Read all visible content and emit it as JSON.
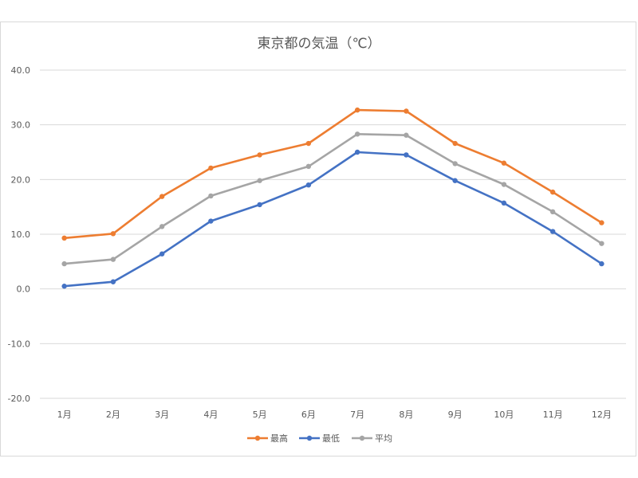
{
  "chart_data": {
    "type": "line",
    "title": "東京都の気温（℃）",
    "categories": [
      "1月",
      "2月",
      "3月",
      "4月",
      "5月",
      "6月",
      "7月",
      "8月",
      "9月",
      "10月",
      "11月",
      "12月"
    ],
    "series": [
      {
        "name": "最高",
        "color": "#ED7D31",
        "values": [
          9.3,
          10.1,
          16.9,
          22.1,
          24.5,
          26.6,
          32.7,
          32.5,
          26.6,
          23.0,
          17.7,
          12.1
        ]
      },
      {
        "name": "最低",
        "color": "#4472C4",
        "values": [
          0.5,
          1.3,
          6.4,
          12.4,
          15.4,
          19.0,
          25.0,
          24.5,
          19.8,
          15.7,
          10.5,
          4.6
        ]
      },
      {
        "name": "平均",
        "color": "#A5A5A5",
        "values": [
          4.6,
          5.4,
          11.4,
          17.0,
          19.8,
          22.4,
          28.3,
          28.1,
          22.9,
          19.1,
          14.1,
          8.3
        ]
      }
    ],
    "ylim": [
      -20,
      40
    ],
    "yticks": [
      "-20.0",
      "-10.0",
      "0.0",
      "10.0",
      "20.0",
      "30.0",
      "40.0"
    ],
    "grid": true,
    "legend": "bottom",
    "colors": {
      "grid": "#D9D9D9",
      "text": "#595959"
    }
  }
}
